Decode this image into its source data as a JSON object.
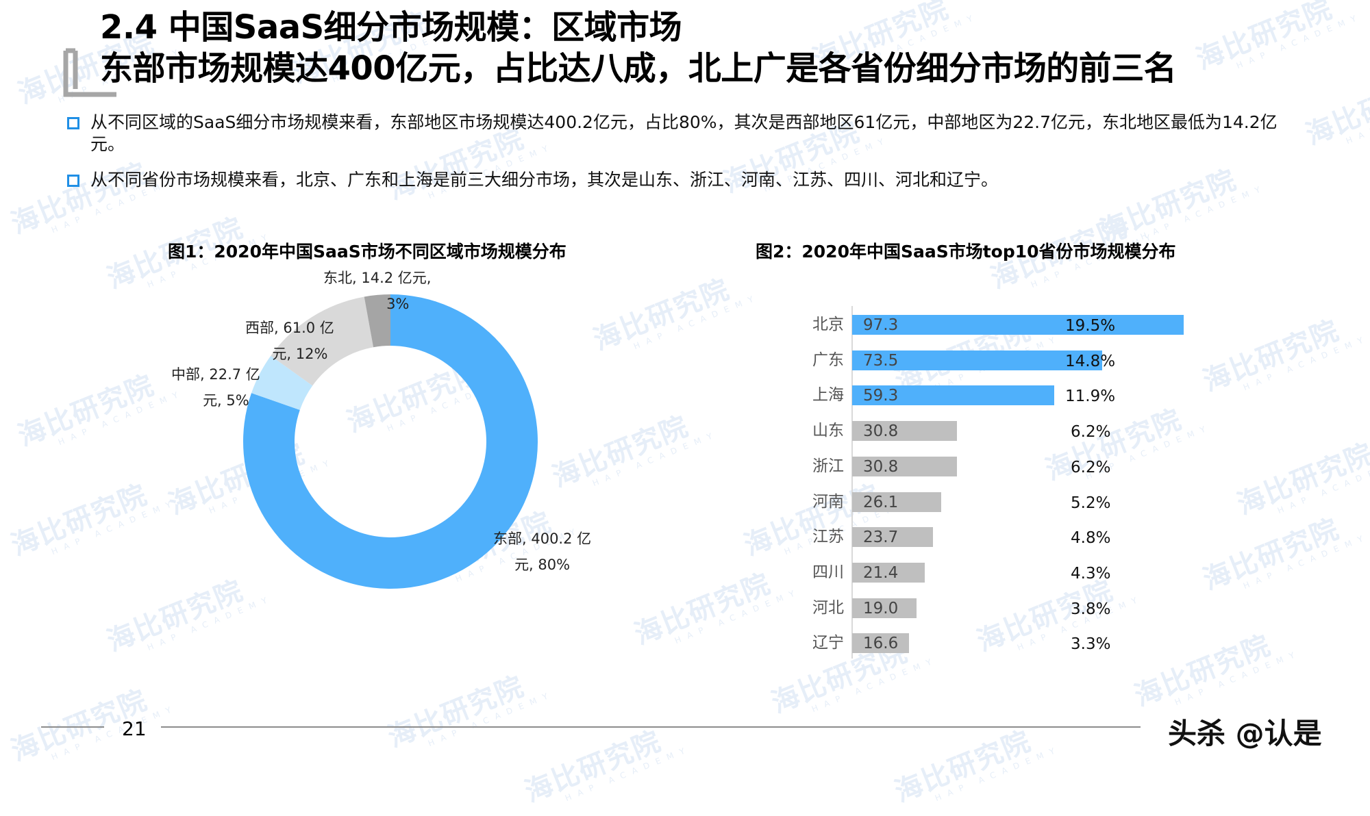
{
  "header": {
    "title_line1": "2.4 中国SaaS细分市场规模：区域市场",
    "title_line2": "东部市场规模达400亿元，占比达八成，北上广是各省份细分市场的前三名"
  },
  "bullets": [
    "从不同区域的SaaS细分市场规模来看，东部地区市场规模达400.2亿元，占比80%，其次是西部地区61亿元，中部地区为22.7亿元，东北地区最低为14.2亿元。",
    "从不同省份市场规模来看，北京、广东和上海是前三大细分市场，其次是山东、浙江、河南、江苏、四川、河北和辽宁。"
  ],
  "watermark": {
    "text": "海比研究院",
    "subtext": "HAP ACADEMY"
  },
  "colors": {
    "accent_blue": "#4fb0fb",
    "light_blue": "#bfe6fd",
    "light_gray": "#d9d9d9",
    "mid_gray": "#a5a5a5",
    "bar_gray": "#bfbfbf",
    "bullet_blue": "#1f8fe5"
  },
  "chart_data": [
    {
      "type": "pie",
      "variant": "donut",
      "title": "图1：2020年中国SaaS市场不同区域市场规模分布",
      "unit": "亿元",
      "categories": [
        "东部",
        "中部",
        "西部",
        "东北"
      ],
      "values": [
        400.2,
        22.7,
        61.0,
        14.2
      ],
      "percentages": [
        80,
        5,
        12,
        3
      ],
      "colors": [
        "#4fb0fb",
        "#bfe6fd",
        "#d9d9d9",
        "#a5a5a5"
      ],
      "labels": [
        {
          "line1": "东部, 400.2 亿",
          "line2": "元, 80%"
        },
        {
          "line1": "中部, 22.7 亿",
          "line2": "元, 5%"
        },
        {
          "line1": "西部, 61.0 亿",
          "line2": "元, 12%"
        },
        {
          "line1": "东北, 14.2 亿元,",
          "line2": "3%"
        }
      ],
      "legend": "none"
    },
    {
      "type": "bar",
      "orientation": "horizontal",
      "title": "图2：2020年中国SaaS市场top10省份市场规模分布",
      "unit": "亿元",
      "categories": [
        "北京",
        "广东",
        "上海",
        "山东",
        "浙江",
        "河南",
        "江苏",
        "四川",
        "河北",
        "辽宁"
      ],
      "values": [
        97.3,
        73.5,
        59.3,
        30.8,
        30.8,
        26.1,
        23.7,
        21.4,
        19.0,
        16.6
      ],
      "value_labels": [
        "97.3",
        "73.5",
        "59.3",
        "30.8",
        "30.8",
        "26.1",
        "23.7",
        "21.4",
        "19.0",
        "16.6"
      ],
      "share_labels": [
        "19.5%",
        "14.8%",
        "11.9%",
        "6.2%",
        "6.2%",
        "5.2%",
        "4.8%",
        "4.3%",
        "3.8%",
        "3.3%"
      ],
      "highlight_top": 3,
      "xlim": [
        0,
        100
      ],
      "grid": false,
      "legend": "none"
    }
  ],
  "footer": {
    "page_number": "21",
    "credit": "头杀 @认是"
  }
}
